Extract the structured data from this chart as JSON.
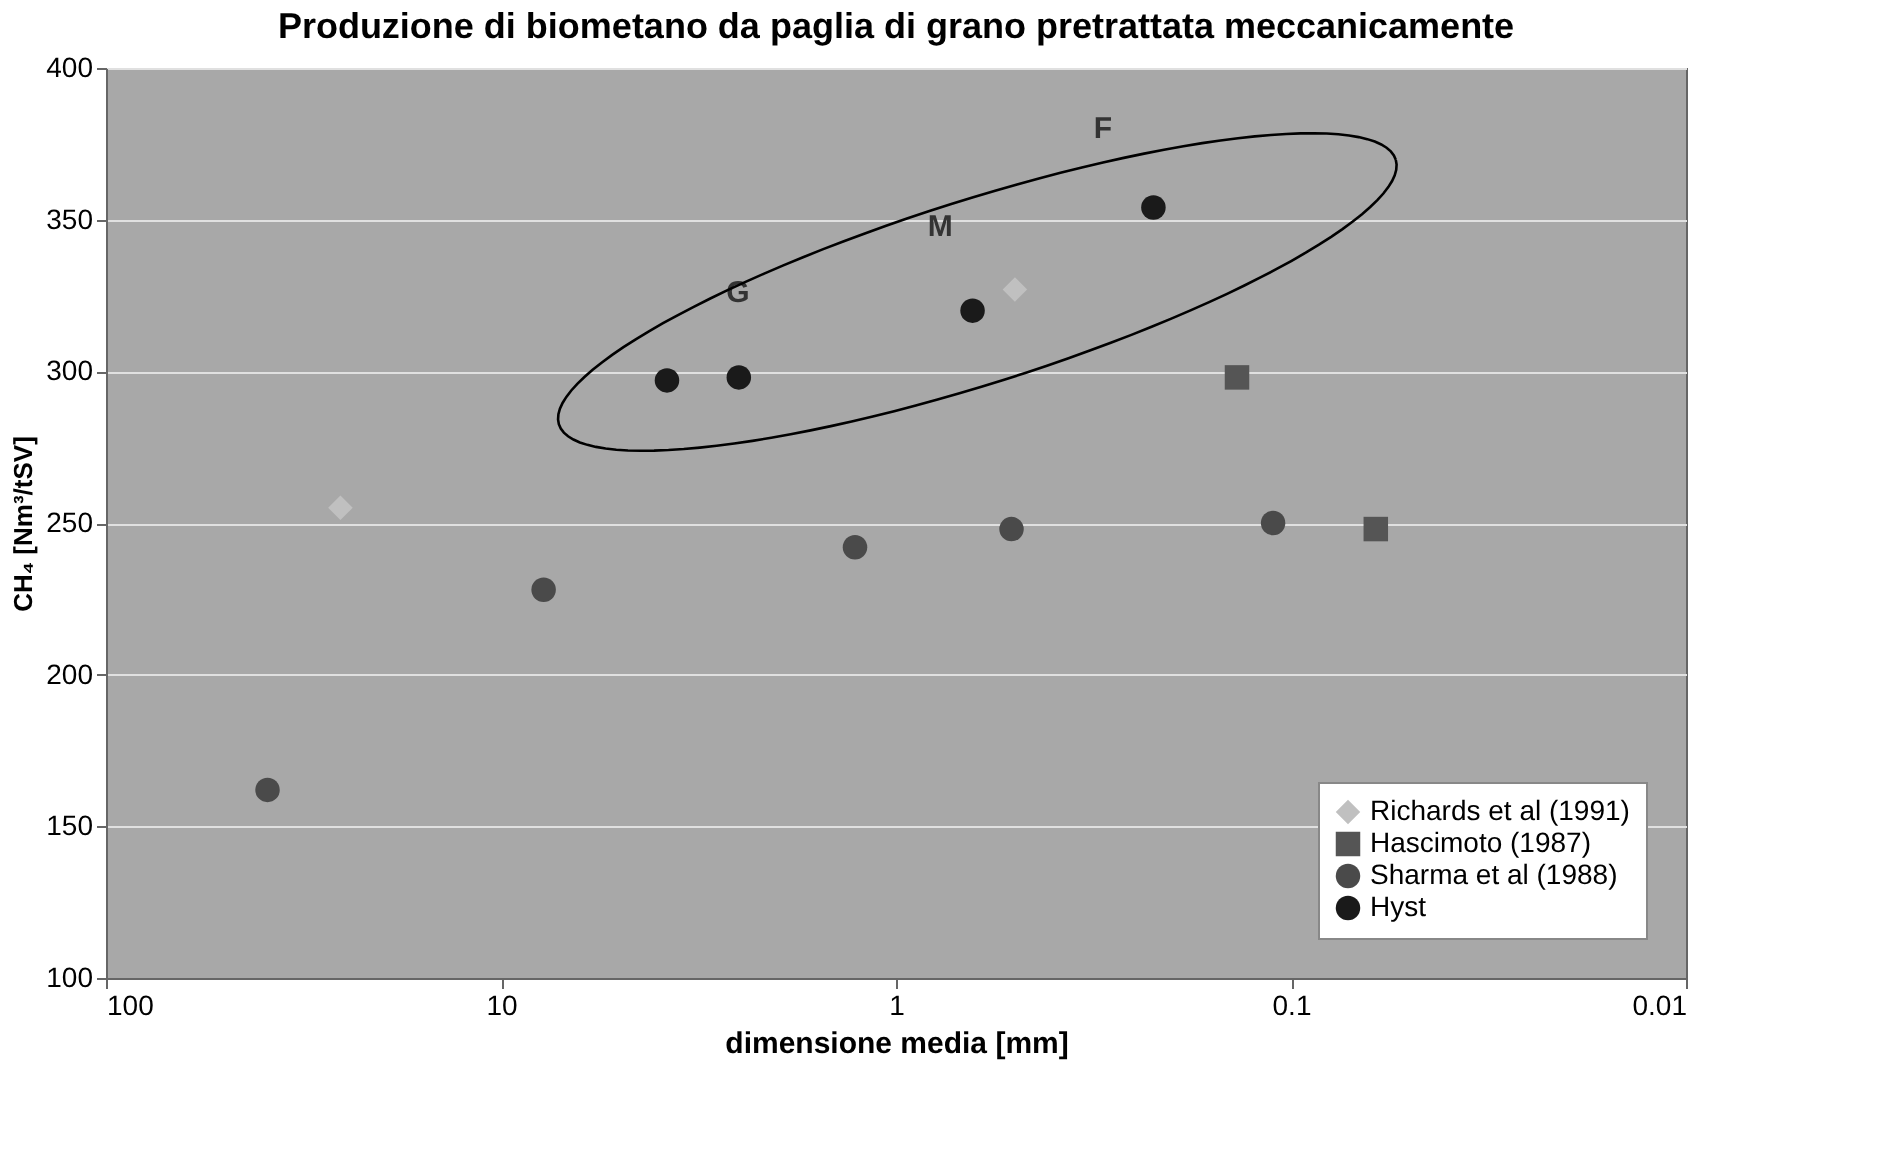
{
  "chart_data": {
    "type": "scatter",
    "title": "Produzione di biometano da paglia di grano pretrattata meccanicamente",
    "xlabel": "dimensione media [mm]",
    "ylabel": "CH₄ [Nm³/tSV]",
    "log": "x",
    "xlim": [
      100,
      0.01
    ],
    "xticks": [
      100,
      10,
      1,
      0.1,
      0.01
    ],
    "ylim": [
      100,
      400
    ],
    "yticks": [
      100,
      150,
      200,
      250,
      300,
      350,
      400
    ],
    "grid": "y",
    "legend": "bottom right",
    "series": [
      {
        "name": "Richards et al (1991)",
        "color": "#c0c0c0",
        "marker": "diamond",
        "x": [
          25.5,
          0.5
        ],
        "values": [
          255,
          327
        ]
      },
      {
        "name": "Hascimoto (1987)",
        "color": "#555555",
        "marker": "square",
        "x": [
          0.137,
          0.061
        ],
        "values": [
          298,
          248
        ]
      },
      {
        "name": "Sharma et al (1988)",
        "color": "#4a4a4a",
        "marker": "circle",
        "x": [
          39,
          7.8,
          1.27,
          0.51,
          0.111
        ],
        "values": [
          162,
          228,
          242,
          248,
          250
        ]
      },
      {
        "name": "Hyst",
        "color": "#1a1a1a",
        "marker": "circle",
        "x": [
          3.8,
          2.5,
          0.64,
          0.223
        ],
        "values": [
          297,
          298,
          320,
          354
        ]
      }
    ],
    "annotations": [
      "G",
      "M",
      "F"
    ]
  }
}
